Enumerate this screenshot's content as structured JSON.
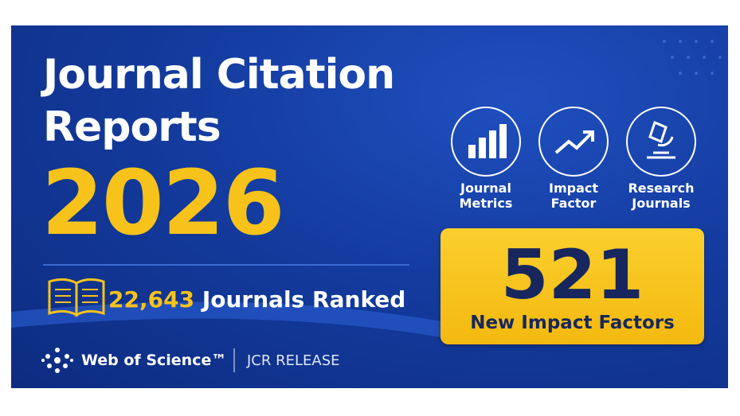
{
  "banner": {
    "title_lines": [
      "Journal Citation",
      "Reports"
    ],
    "year": "2026",
    "ranked": {
      "count": "22,643",
      "label": "Journals Ranked"
    },
    "brand": {
      "name": "Web of Science™",
      "tag": "JCR RELEASE"
    },
    "features": [
      {
        "label": "Journal Metrics"
      },
      {
        "label": "Impact Factor"
      },
      {
        "label": "Research Journals"
      }
    ],
    "highlight": {
      "number": "521",
      "label": "New Impact Factors"
    }
  }
}
